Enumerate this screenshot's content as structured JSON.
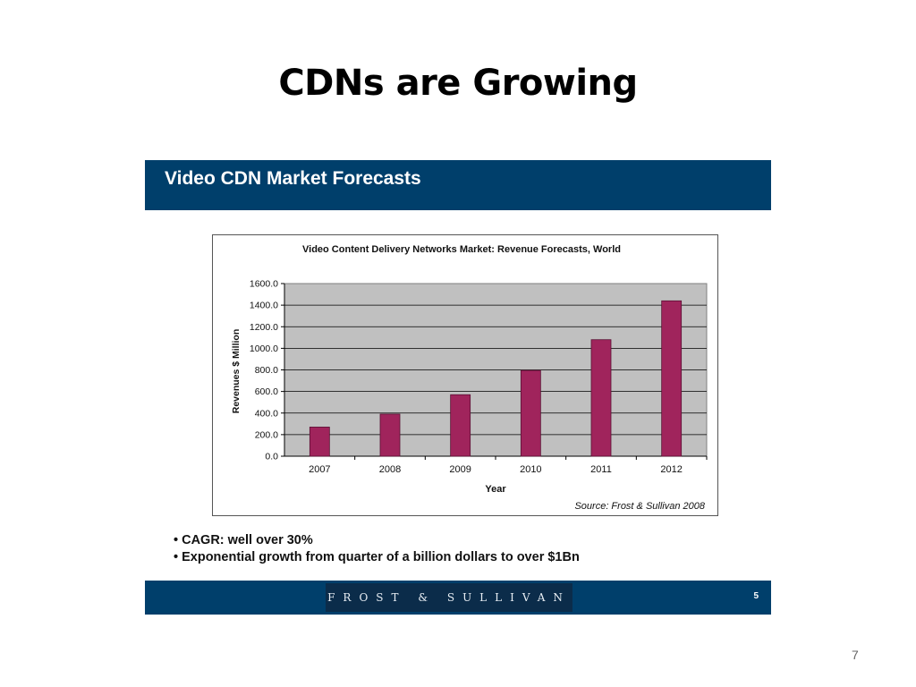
{
  "slide": {
    "title": "CDNs are Growing",
    "number": "7"
  },
  "panel": {
    "header": "Video CDN Market Forecasts",
    "bullets": [
      "• CAGR: well over 30%",
      "• Exponential growth from quarter of a billion dollars to over $1Bn"
    ],
    "footer_logo": "FROST & SULLIVAN",
    "footer_page": "5"
  },
  "chart_data": {
    "type": "bar",
    "title": "Video Content Delivery Networks Market: Revenue Forecasts, World",
    "xlabel": "Year",
    "ylabel": "Revenues $ Million",
    "categories": [
      "2007",
      "2008",
      "2009",
      "2010",
      "2011",
      "2012"
    ],
    "values": [
      270,
      390,
      570,
      795,
      1080,
      1440
    ],
    "ylim": [
      0,
      1600
    ],
    "yticks": [
      "0.0",
      "200.0",
      "400.0",
      "600.0",
      "800.0",
      "1000.0",
      "1200.0",
      "1400.0",
      "1600.0"
    ],
    "source": "Source: Frost & Sullivan 2008",
    "grid": true,
    "colors": {
      "bar": "#a0245c",
      "bar_edge": "#5a0f33",
      "plot_bg": "#c0c0c0"
    }
  }
}
